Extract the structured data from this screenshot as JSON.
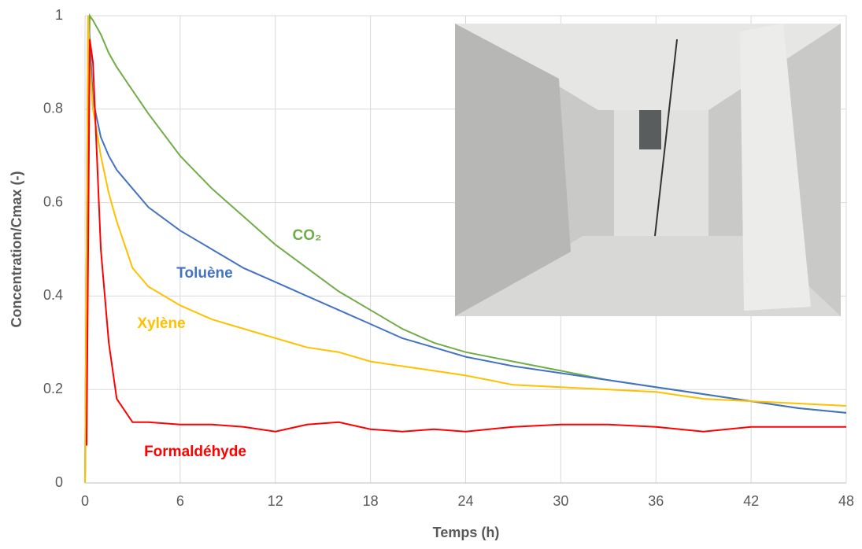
{
  "chart_data": {
    "type": "line",
    "xlabel": "Temps (h)",
    "ylabel": "Concentration/Cmax (-)",
    "xlim": [
      0,
      48
    ],
    "xticks": [
      0,
      6,
      12,
      18,
      24,
      30,
      36,
      42,
      48
    ],
    "ylim": [
      0,
      1
    ],
    "yticks": [
      0,
      0.2,
      0.4,
      0.6,
      0.8,
      1
    ],
    "grid": true,
    "x": [
      0,
      0.1,
      0.2,
      0.3,
      0.5,
      1,
      1.5,
      2,
      3,
      4,
      6,
      8,
      10,
      12,
      14,
      16,
      18,
      20,
      22,
      24,
      27,
      30,
      33,
      36,
      39,
      42,
      45,
      48
    ],
    "series": [
      {
        "name": "CO₂",
        "color": "#70ad47",
        "values": [
          0,
          0.3,
          0.8,
          1.0,
          0.99,
          0.96,
          0.92,
          0.89,
          0.84,
          0.79,
          0.7,
          0.63,
          0.57,
          0.51,
          0.46,
          0.41,
          0.37,
          0.33,
          0.3,
          0.28,
          0.26,
          0.24,
          0.22,
          0.205,
          0.19,
          0.175,
          0.16,
          0.15
        ]
      },
      {
        "name": "Toluène",
        "color": "#4472c4",
        "values": [
          0,
          0.5,
          1.0,
          0.95,
          0.82,
          0.74,
          0.7,
          0.67,
          0.63,
          0.59,
          0.54,
          0.5,
          0.46,
          0.43,
          0.4,
          0.37,
          0.34,
          0.31,
          0.29,
          0.27,
          0.25,
          0.235,
          0.22,
          0.205,
          0.19,
          0.175,
          0.16,
          0.15
        ]
      },
      {
        "name": "Xylène",
        "color": "#ffc000",
        "values": [
          0,
          0.5,
          1.0,
          0.9,
          0.8,
          0.7,
          0.62,
          0.56,
          0.46,
          0.42,
          0.38,
          0.35,
          0.33,
          0.31,
          0.29,
          0.28,
          0.26,
          0.25,
          0.24,
          0.23,
          0.21,
          0.205,
          0.2,
          0.195,
          0.18,
          0.175,
          0.17,
          0.165
        ]
      },
      {
        "name": "Formaldéhyde",
        "color": "#ff0000",
        "values": [
          null,
          0.08,
          0.5,
          0.95,
          0.9,
          0.5,
          0.3,
          0.18,
          0.13,
          0.13,
          0.125,
          0.125,
          0.12,
          0.11,
          0.125,
          0.13,
          0.115,
          0.11,
          0.115,
          0.11,
          0.12,
          0.125,
          0.125,
          0.12,
          0.11,
          0.12,
          0.12,
          0.12
        ]
      }
    ]
  }
}
